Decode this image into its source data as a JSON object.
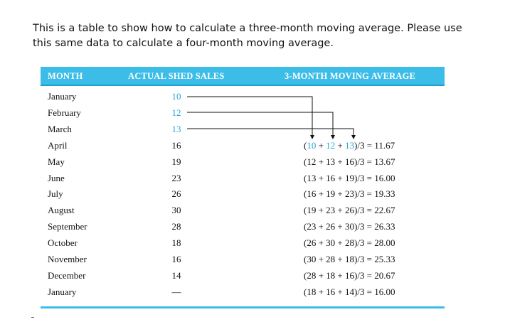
{
  "instructions": {
    "line1": "This is a table to show how to calculate a three-month moving average. Please use",
    "line2": "this same data to calculate a four-month moving average."
  },
  "table": {
    "headers": {
      "month": "MONTH",
      "sales": "ACTUAL SHED SALES",
      "average": "3-MONTH MOVING AVERAGE"
    },
    "rows": [
      {
        "month": "January",
        "sales": "10",
        "avg": ""
      },
      {
        "month": "February",
        "sales": "12",
        "avg": ""
      },
      {
        "month": "March",
        "sales": "13",
        "avg": ""
      },
      {
        "month": "April",
        "sales": "16",
        "avg": "",
        "avg_parts": [
          "(",
          "10",
          " + ",
          "12",
          " + ",
          "13",
          ")/3 = 11.67"
        ]
      },
      {
        "month": "May",
        "sales": "19",
        "avg": "(12 + 13 + 16)/3 = 13.67"
      },
      {
        "month": "June",
        "sales": "23",
        "avg": "(13 + 16 + 19)/3 = 16.00"
      },
      {
        "month": "July",
        "sales": "26",
        "avg": "(16 + 19 + 23)/3 = 19.33"
      },
      {
        "month": "August",
        "sales": "30",
        "avg": "(19 + 23 + 26)/3 = 22.67"
      },
      {
        "month": "September",
        "sales": "28",
        "avg": "(23 + 26 + 30)/3 = 26.33"
      },
      {
        "month": "October",
        "sales": "18",
        "avg": "(26 + 30 + 28)/3 = 28.00"
      },
      {
        "month": "November",
        "sales": "16",
        "avg": "(30 + 28 + 18)/3 = 25.33"
      },
      {
        "month": "December",
        "sales": "14",
        "avg": "(28 + 18 + 16)/3 = 20.67"
      },
      {
        "month": "January",
        "sales": "—",
        "avg": "(18 + 16 + 14)/3 = 16.00"
      }
    ]
  },
  "colors": {
    "header_bg": "#3cbde8",
    "highlight": "#2aa6d9",
    "text": "#111111"
  }
}
